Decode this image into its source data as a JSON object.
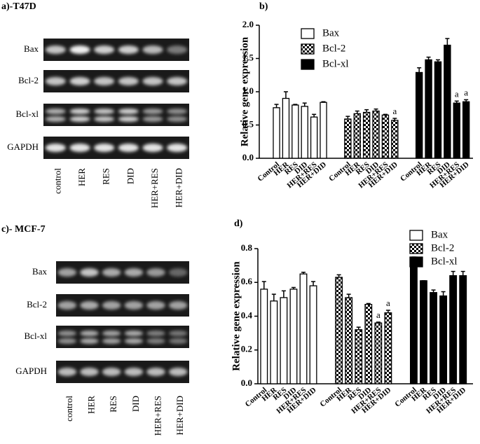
{
  "panel_a": {
    "label": "a)-T47D",
    "rows": [
      "Bax",
      "Bcl-2",
      "Bcl-xl",
      "GAPDH"
    ],
    "lanes": [
      "control",
      "HER",
      "RES",
      "DID",
      "HER+RES",
      "HER+DID"
    ]
  },
  "panel_c": {
    "label": "c)- MCF-7",
    "rows": [
      "Bax",
      "Bcl-2",
      "Bcl-xl",
      "GAPDH"
    ],
    "lanes": [
      "control",
      "HER",
      "RES",
      "DID",
      "HER+RES",
      "HER+DID"
    ]
  },
  "chart_data": [
    {
      "type": "bar",
      "panel_label": "b)",
      "y_label": "Relative gene expression",
      "categories": [
        "Control",
        "HER",
        "RES",
        "DID",
        "HER+RES",
        "HER+DID"
      ],
      "ylim": [
        0,
        2
      ],
      "yticks": [
        {
          "value": 0,
          "label": "0.0"
        },
        0.5,
        {
          "value": 1,
          "label": "1.0"
        },
        1.5,
        {
          "value": 2,
          "label": "2.0"
        }
      ],
      "series": [
        {
          "name": "Bax",
          "color": "#ffffff",
          "values": [
            0.76,
            0.9,
            0.8,
            0.78,
            0.62,
            0.84
          ],
          "errors": [
            0.05,
            0.1,
            0.01,
            0.05,
            0.04,
            0.01
          ],
          "annotations": [
            null,
            null,
            null,
            null,
            null,
            null
          ]
        },
        {
          "name": "Bcl-2",
          "color": "#000000",
          "pattern": "checker",
          "values": [
            0.59,
            0.67,
            0.69,
            0.71,
            0.65,
            0.57
          ],
          "errors": [
            0.04,
            0.04,
            0.04,
            0.03,
            0.01,
            0.03
          ],
          "annotations": [
            null,
            null,
            null,
            null,
            null,
            "a"
          ]
        },
        {
          "name": "Bcl-xl",
          "color": "#000000",
          "values": [
            1.29,
            1.48,
            1.45,
            1.7,
            0.83,
            0.85
          ],
          "errors": [
            0.07,
            0.04,
            0.03,
            0.1,
            0.03,
            0.03
          ],
          "annotations": [
            null,
            null,
            null,
            null,
            "a",
            "a"
          ]
        }
      ]
    },
    {
      "type": "bar",
      "panel_label": "d)",
      "y_label": "Relative gene expression",
      "categories": [
        "Control",
        "HER",
        "RES",
        "DID",
        "HER+RES",
        "HER+DID"
      ],
      "ylim": [
        0,
        0.8
      ],
      "yticks": [
        {
          "value": 0,
          "label": "0.0"
        },
        0.2,
        0.4,
        0.6,
        0.8
      ],
      "series": [
        {
          "name": "Bax",
          "color": "#ffffff",
          "values": [
            0.56,
            0.49,
            0.51,
            0.56,
            0.65,
            0.58
          ],
          "errors": [
            0.045,
            0.04,
            0.04,
            0.01,
            0.01,
            0.025
          ],
          "annotations": [
            null,
            null,
            null,
            null,
            null,
            null
          ]
        },
        {
          "name": "Bcl-2",
          "color": "#000000",
          "pattern": "checker",
          "values": [
            0.63,
            0.51,
            0.32,
            0.47,
            0.36,
            0.42
          ],
          "errors": [
            0.015,
            0.02,
            0.015,
            0.005,
            0.005,
            0.015
          ],
          "annotations": [
            null,
            null,
            null,
            null,
            "a",
            "a"
          ]
        },
        {
          "name": "Bcl-xl",
          "color": "#000000",
          "values": [
            0.75,
            0.61,
            0.54,
            0.52,
            0.64,
            0.64
          ],
          "errors": [
            0,
            0,
            0.015,
            0.025,
            0.025,
            0.025
          ],
          "annotations": [
            null,
            null,
            null,
            null,
            null,
            null
          ]
        }
      ]
    }
  ]
}
